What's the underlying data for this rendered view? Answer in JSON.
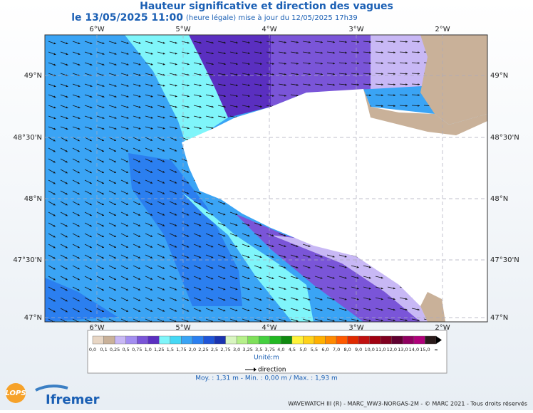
{
  "header": {
    "title": "Hauteur significative et direction des vagues",
    "date": "le 13/05/2025 11:00",
    "note": "(heure légale) mise à jour du 12/05/2025 17h39"
  },
  "map": {
    "lon_labels": [
      "6°W",
      "5°W",
      "4°W",
      "3°W",
      "2°W"
    ],
    "lat_labels": [
      "49°N",
      "48°30'N",
      "48°N",
      "47°30'N",
      "47°N"
    ]
  },
  "legend": {
    "labels": [
      "0,0",
      "0,1",
      "0,25",
      "0,5",
      "0,75",
      "1,0",
      "1,25",
      "1,5",
      "1,75",
      "2,0",
      "2,25",
      "2,5",
      "2,75",
      "3,0",
      "3,25",
      "3,5",
      "3,75",
      "4,0",
      "4,5",
      "5,0",
      "5,5",
      "6,0",
      "7,0",
      "8,0",
      "9,0",
      "10,0",
      "11,0",
      "12,0",
      "13,0",
      "14,0",
      "15,0",
      "∞"
    ],
    "colors": [
      "#e8d6c4",
      "#c9b199",
      "#c8b8f5",
      "#a38ef0",
      "#7a55d8",
      "#5a2fc0",
      "#7ff5fa",
      "#45d8f5",
      "#3aa4f5",
      "#2b7ff0",
      "#1f55d8",
      "#1a33b0",
      "#d8f5c0",
      "#b6f08a",
      "#7fe05a",
      "#45d040",
      "#22b822",
      "#108a10",
      "#fff23a",
      "#ffd21a",
      "#ffb000",
      "#ff8a00",
      "#ff5a00",
      "#e02a00",
      "#c01010",
      "#a00010",
      "#800020",
      "#600030",
      "#900060",
      "#b0007a",
      "#2a1a1a"
    ],
    "unit": "Unité:m",
    "direction": "direction"
  },
  "stats": "Moy. : 1,31 m  -  Min. : 0,00 m / Max. : 1,93 m",
  "footer": "WAVEWATCH III (R) - MARC_WW3-NORGAS-2M - © MARC 2021 - Tous droits réservés",
  "logos": {
    "lops": "LOPS",
    "ifremer": "Ifremer"
  }
}
